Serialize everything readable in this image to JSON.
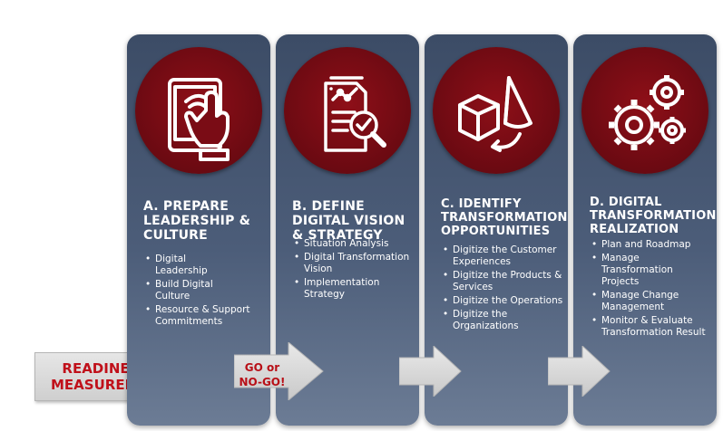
{
  "colors": {
    "card_top": "#3c4c66",
    "card_bottom": "#6c7c95",
    "circle": "#7a0c15",
    "accent_red": "#c0101a",
    "arrow_gray": "#d4d4d4"
  },
  "cards": [
    {
      "title": "A. PREPARE LEADERSHIP & CULTURE",
      "icon": "tablet-touch-icon",
      "items": [
        "Digital Leadership",
        "Build Digital Culture",
        "Resource & Support Commitments"
      ]
    },
    {
      "title": "B. DEFINE DIGITAL VISION & STRATEGY",
      "icon": "document-analysis-icon",
      "items": [
        "Situation Analysis",
        "Digital Transformation Vision",
        "Implementation Strategy"
      ]
    },
    {
      "title": "C. IDENTIFY TRANSFORMATION OPPORTUNITIES",
      "icon": "3d-shapes-icon",
      "items": [
        "Digitize the Customer Experiences",
        "Digitize the Products & Services",
        "Digitize the Operations",
        "Digitize the Organizations"
      ]
    },
    {
      "title": "D. DIGITAL TRANSFORMATION REALIZATION",
      "icon": "gears-icon",
      "items": [
        "Plan and Roadmap",
        "Manage Transformation Projects",
        "Manage Change Management",
        "Monitor & Evaluate Transformation Result"
      ]
    }
  ],
  "readiness": "READINESS MEASUREMENT",
  "go_no_go": "GO or NO-GO!"
}
